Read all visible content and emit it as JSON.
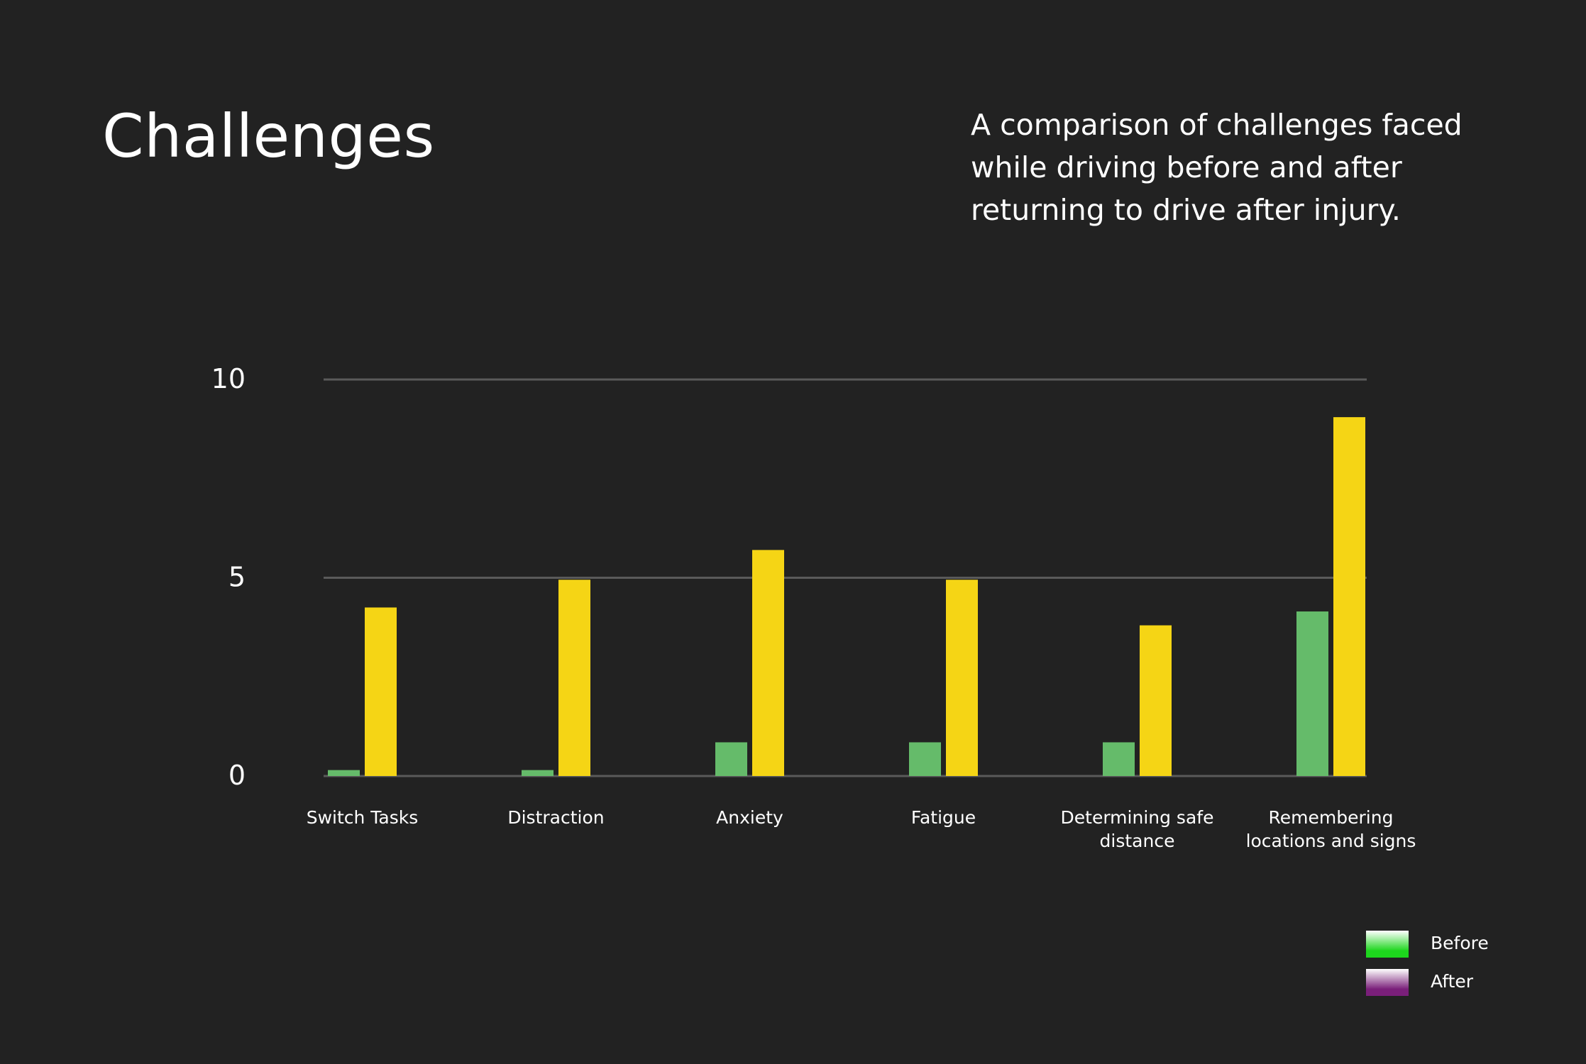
{
  "header": {
    "title": "Challenges",
    "subtitle": "A comparison of challenges faced while driving before and after returning to drive after injury."
  },
  "chart_data": {
    "type": "bar",
    "categories": [
      [
        "Switch Tasks"
      ],
      [
        "Distraction"
      ],
      [
        "Anxiety"
      ],
      [
        "Fatigue"
      ],
      [
        "Determining safe",
        "distance"
      ],
      [
        "Remembering",
        "locations and signs"
      ]
    ],
    "series": [
      {
        "name": "Before",
        "color": "#65bb6a",
        "legend_gradient": [
          "#ffffff",
          "#1dd61d"
        ],
        "values": [
          0.15,
          0.15,
          0.85,
          0.85,
          0.85,
          4.15
        ]
      },
      {
        "name": "After",
        "color": "#f5d515",
        "legend_gradient": [
          "#ffffff",
          "#7a1f7a"
        ],
        "values": [
          4.25,
          4.95,
          5.7,
          4.95,
          3.8,
          9.05
        ]
      }
    ],
    "yticks": [
      0,
      5,
      10
    ],
    "ylim": [
      0,
      10
    ],
    "legend_position": "bottom-right",
    "grid": true
  }
}
